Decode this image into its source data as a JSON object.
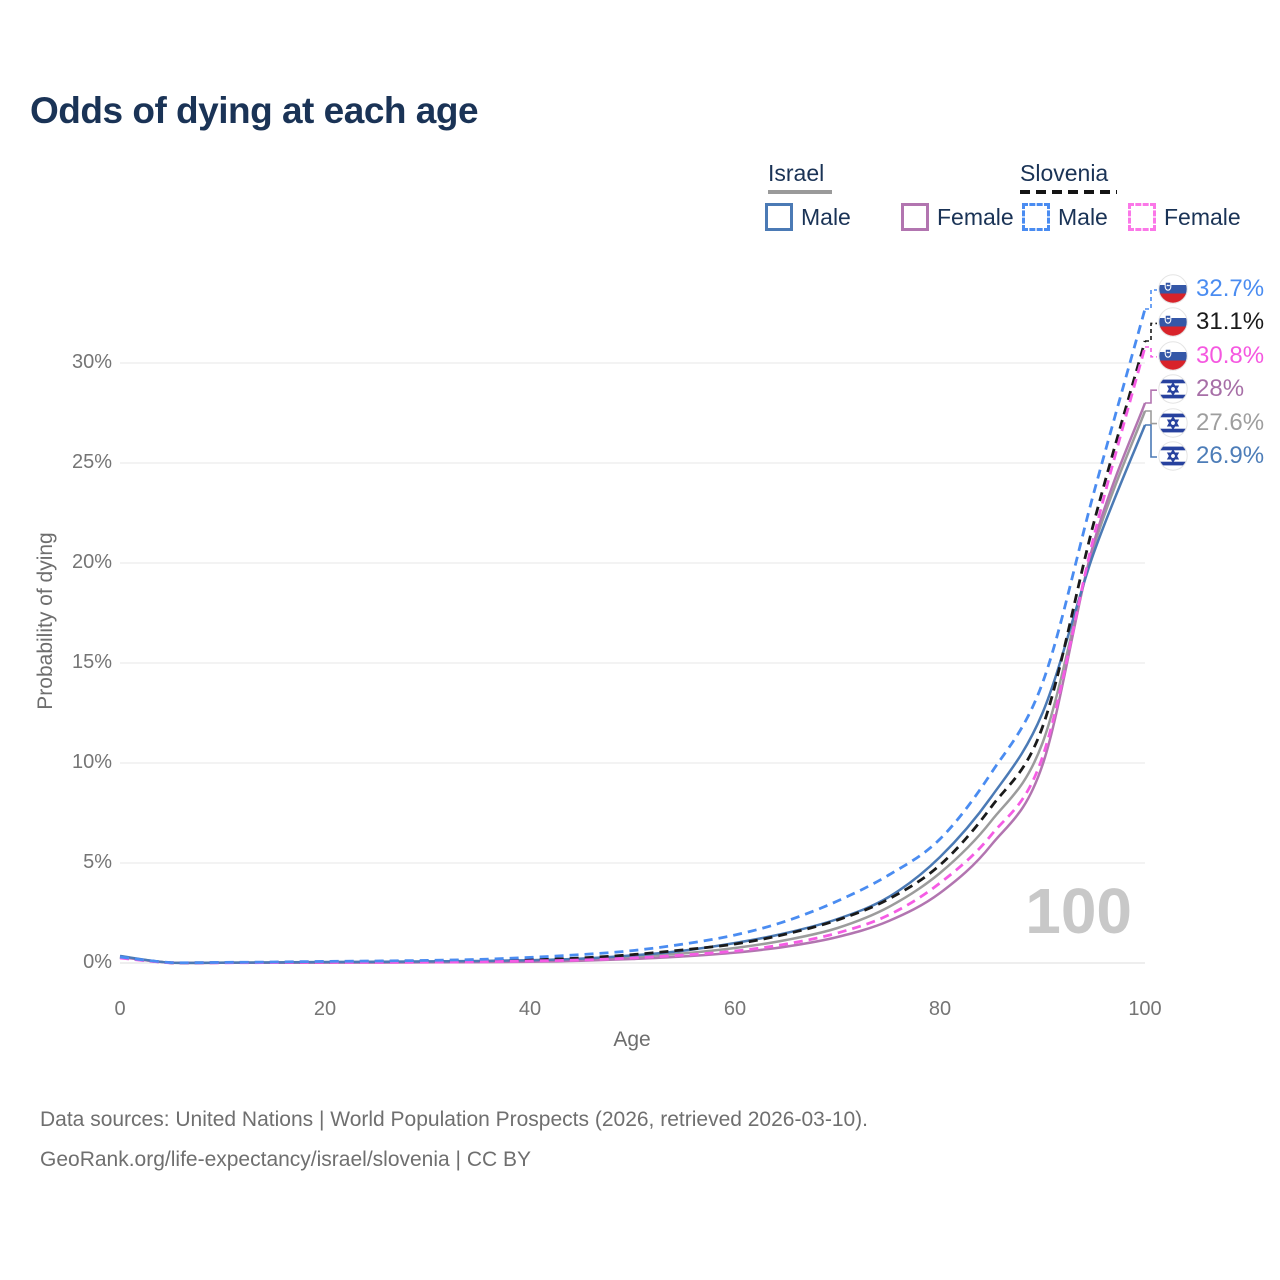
{
  "title": "Odds of dying at each age",
  "legend": {
    "groups": [
      {
        "country": "Israel",
        "line_style": "solid",
        "underline_color": "#9a9a9a",
        "items": [
          {
            "label": "Male",
            "color": "#4b7ab5",
            "dashed": false
          },
          {
            "label": "Female",
            "color": "#b275b0",
            "dashed": false
          }
        ]
      },
      {
        "country": "Slovenia",
        "line_style": "dashed",
        "underline_color": "#141414",
        "items": [
          {
            "label": "Male",
            "color": "#4a8cf1",
            "dashed": true
          },
          {
            "label": "Female",
            "color": "#fb77e8",
            "dashed": true
          }
        ]
      }
    ]
  },
  "watermark": "100",
  "chart_data": {
    "type": "line",
    "title": "Odds of dying at each age",
    "xlabel": "Age",
    "ylabel": "Probability of dying",
    "xlim": [
      0,
      100
    ],
    "ylim": [
      0,
      34
    ],
    "grid": "horizontal",
    "legend_position": "top-right",
    "x_ticks": [
      0,
      20,
      40,
      60,
      80,
      100
    ],
    "x_tick_labels": [
      "0",
      "20",
      "40",
      "60",
      "80",
      "100"
    ],
    "y_ticks": [
      0,
      5,
      10,
      15,
      20,
      25,
      30
    ],
    "y_tick_labels": [
      "0%",
      "5%",
      "10%",
      "15%",
      "20%",
      "25%",
      "30%"
    ],
    "x": [
      0,
      5,
      10,
      15,
      20,
      25,
      30,
      35,
      40,
      45,
      50,
      55,
      60,
      65,
      70,
      75,
      80,
      85,
      90,
      95,
      100
    ],
    "series": [
      {
        "id": "israel_both",
        "name": "Israel (both sexes)",
        "country": "Israel",
        "sex": "total",
        "color": "#9c9c9c",
        "dashed": false,
        "values": [
          0.32,
          0.01,
          0.01,
          0.02,
          0.03,
          0.04,
          0.06,
          0.08,
          0.11,
          0.17,
          0.3,
          0.48,
          0.75,
          1.15,
          1.75,
          2.8,
          4.5,
          7.1,
          11.0,
          20.8,
          27.6
        ]
      },
      {
        "id": "israel_female",
        "name": "Israel Female",
        "country": "Israel",
        "sex": "female",
        "color": "#b275b0",
        "dashed": false,
        "values": [
          0.3,
          0.01,
          0.01,
          0.01,
          0.02,
          0.02,
          0.03,
          0.04,
          0.06,
          0.11,
          0.2,
          0.33,
          0.52,
          0.82,
          1.3,
          2.1,
          3.5,
          5.9,
          9.9,
          21.0,
          28.0
        ]
      },
      {
        "id": "israel_male",
        "name": "Israel Male",
        "country": "Israel",
        "sex": "male",
        "color": "#4b7ab5",
        "dashed": false,
        "values": [
          0.35,
          0.01,
          0.02,
          0.03,
          0.05,
          0.06,
          0.08,
          0.1,
          0.14,
          0.22,
          0.38,
          0.62,
          1.0,
          1.5,
          2.2,
          3.3,
          5.3,
          8.3,
          12.5,
          20.5,
          26.9
        ]
      },
      {
        "id": "slovenia_both",
        "name": "Slovenia (both sexes)",
        "country": "Slovenia",
        "sex": "total",
        "color": "#1a1a1a",
        "dashed": true,
        "values": [
          0.28,
          0.01,
          0.02,
          0.03,
          0.04,
          0.06,
          0.08,
          0.11,
          0.16,
          0.25,
          0.42,
          0.66,
          0.95,
          1.45,
          2.15,
          3.2,
          4.9,
          7.8,
          11.8,
          22.0,
          31.1
        ]
      },
      {
        "id": "slovenia_female",
        "name": "Slovenia Female",
        "country": "Slovenia",
        "sex": "female",
        "color": "#f55ce4",
        "dashed": true,
        "values": [
          0.25,
          0.01,
          0.01,
          0.02,
          0.03,
          0.03,
          0.04,
          0.06,
          0.1,
          0.15,
          0.25,
          0.4,
          0.6,
          0.95,
          1.5,
          2.4,
          4.0,
          6.4,
          10.3,
          21.3,
          30.8
        ]
      },
      {
        "id": "slovenia_male",
        "name": "Slovenia Male",
        "country": "Slovenia",
        "sex": "male",
        "color": "#4a8cf1",
        "dashed": true,
        "values": [
          0.3,
          0.02,
          0.03,
          0.05,
          0.08,
          0.1,
          0.13,
          0.18,
          0.28,
          0.42,
          0.62,
          0.95,
          1.4,
          2.1,
          3.1,
          4.4,
          6.2,
          9.5,
          14.0,
          23.5,
          32.7
        ]
      }
    ],
    "end_labels": [
      {
        "text": "32.7%",
        "series": "slovenia_male",
        "flag": "slovenia",
        "color": "#4a8cf1"
      },
      {
        "text": "31.1%",
        "series": "slovenia_both",
        "flag": "slovenia",
        "color": "#1a1a1a"
      },
      {
        "text": "30.8%",
        "series": "slovenia_female",
        "flag": "slovenia",
        "color": "#f558e0"
      },
      {
        "text": "28%",
        "series": "israel_female",
        "flag": "israel",
        "color": "#a76fa7"
      },
      {
        "text": "27.6%",
        "series": "israel_both",
        "flag": "israel",
        "color": "#9e9e9e"
      },
      {
        "text": "26.9%",
        "series": "israel_male",
        "flag": "israel",
        "color": "#4d7db8"
      }
    ]
  },
  "footer": {
    "line1": "Data sources: United Nations | World Population Prospects (2026, retrieved 2026-03-10).",
    "line2": "GeoRank.org/life-expectancy/israel/slovenia | CC BY"
  }
}
